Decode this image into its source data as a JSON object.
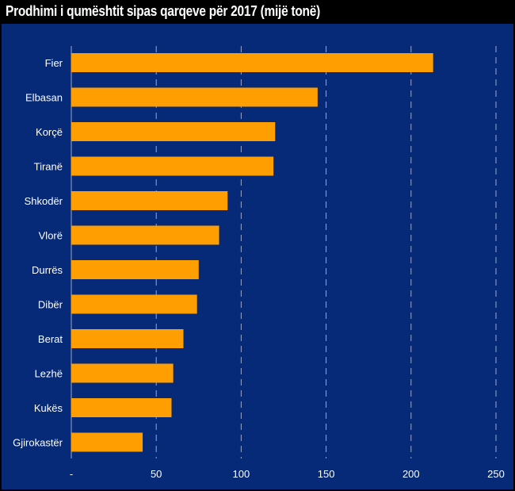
{
  "chart_data": {
    "type": "bar",
    "orientation": "horizontal",
    "title": "Prodhimi i qumështit sipas qarqeve për 2017 (mijë tonë)",
    "categories": [
      "Fier",
      "Elbasan",
      "Korçë",
      "Tiranë",
      "Shkodër",
      "Vlorë",
      "Durrës",
      "Dibër",
      "Berat",
      "Lezhë",
      "Kukës",
      "Gjirokastër"
    ],
    "values": [
      213,
      145,
      120,
      119,
      92,
      87,
      75,
      74,
      66,
      60,
      59,
      42
    ],
    "xlim": [
      0,
      250
    ],
    "ticks": [
      0,
      50,
      100,
      150,
      200,
      250
    ],
    "tick_labels": [
      "-",
      "50",
      "100",
      "150",
      "200",
      "250"
    ],
    "xlabel": "",
    "ylabel": "",
    "grid": "vertical dashed",
    "legend": "none",
    "colors": {
      "bar": "#ff9e00",
      "panel_background": "#062a78",
      "title_background": "#000000",
      "text": "#ffffff",
      "gridline": "#9aa7cc"
    }
  }
}
